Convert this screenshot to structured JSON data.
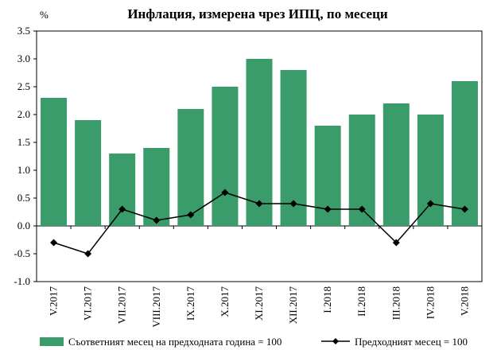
{
  "chart_data": {
    "type": "bar",
    "title": "Инфлация, измерена чрез ИПЦ, по месеци",
    "unit_label": "%",
    "categories": [
      "V.2017",
      "VI.2017",
      "VII.2017",
      "VIII.2017",
      "IX.2017",
      "X.2017",
      "XI.2017",
      "XII.2017",
      "I.2018",
      "II.2018",
      "III.2018",
      "IV.2018",
      "V.2018"
    ],
    "series": [
      {
        "name": "Съответният месец на предходната година = 100",
        "type": "bar",
        "color": "#3a9c6a",
        "values": [
          2.3,
          1.9,
          1.3,
          1.4,
          2.1,
          2.5,
          3.0,
          2.8,
          1.8,
          2.0,
          2.2,
          2.0,
          2.6
        ]
      },
      {
        "name": "Предходният месец = 100",
        "type": "line",
        "color": "#000000",
        "marker": "diamond",
        "values": [
          -0.3,
          -0.5,
          0.3,
          0.1,
          0.2,
          0.6,
          0.4,
          0.4,
          0.3,
          0.3,
          -0.3,
          0.4,
          0.3
        ]
      }
    ],
    "ylim": [
      -1.0,
      3.5
    ],
    "yticks": [
      "3.5",
      "3.0",
      "2.5",
      "2.0",
      "1.5",
      "1.0",
      "0.5",
      "0.0",
      "-0.5",
      "-1.0"
    ],
    "ytick_values": [
      3.5,
      3.0,
      2.5,
      2.0,
      1.5,
      1.0,
      0.5,
      0.0,
      -0.5,
      -1.0
    ],
    "grid": false,
    "legend_position": "bottom"
  }
}
